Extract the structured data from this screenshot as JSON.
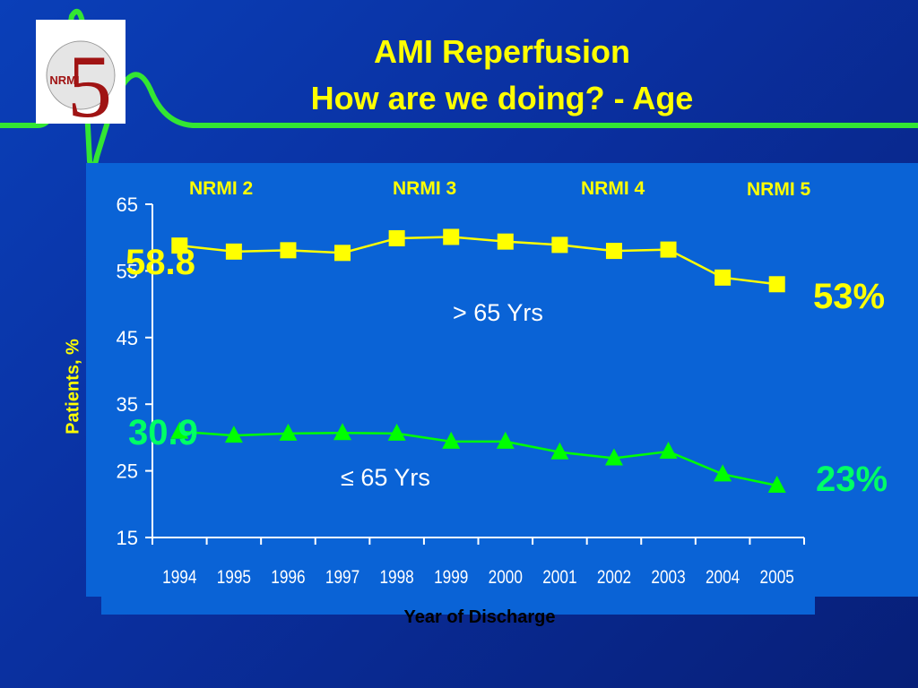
{
  "title_lines": [
    "AMI Reperfusion",
    "How are we doing? - Age"
  ],
  "logo": {
    "text": "NRMI",
    "numeral": "5"
  },
  "eras": [
    "NRMI 2",
    "NRMI 3",
    "NRMI 4",
    "NRMI 5"
  ],
  "callouts": {
    "over65_start": "58.8",
    "over65_end": "53%",
    "under65_start": "30.9",
    "under65_end": "23%"
  },
  "colors": {
    "background": "#0a3fb8",
    "panel": "#0a63d6",
    "over65": "#ffff00",
    "under65": "#00ff00",
    "ecg_line": "#33e633"
  },
  "chart_data": {
    "type": "line",
    "xlabel": "Year of Discharge",
    "ylabel": "Patients, %",
    "categories": [
      "1994",
      "1995",
      "1996",
      "1997",
      "1998",
      "1999",
      "2000",
      "2001",
      "2002",
      "2003",
      "2004",
      "2005"
    ],
    "yticks": [
      "65",
      "55",
      "45",
      "35",
      "25",
      "15"
    ],
    "ylim": [
      15,
      65
    ],
    "grid": false,
    "series": [
      {
        "name": "> 65 Yrs",
        "marker": "square",
        "color": "#ffff00",
        "values": [
          58.8,
          57.9,
          58.1,
          57.7,
          59.9,
          60.1,
          59.4,
          58.9,
          58.0,
          58.2,
          54.0,
          53.0
        ]
      },
      {
        "name": "≤ 65 Yrs",
        "marker": "triangle",
        "color": "#00ff00",
        "values": [
          30.9,
          30.3,
          30.6,
          30.7,
          30.6,
          29.4,
          29.4,
          27.8,
          26.9,
          27.9,
          24.5,
          22.8
        ]
      }
    ]
  }
}
